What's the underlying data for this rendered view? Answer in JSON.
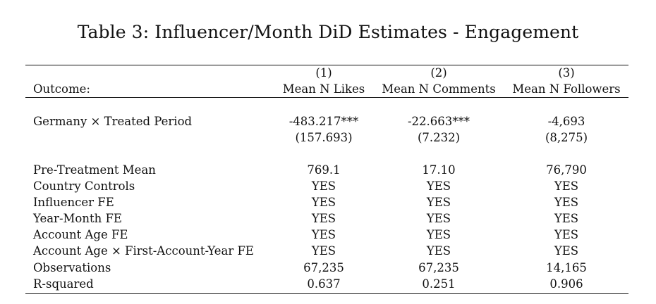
{
  "caption": "Table 3: Influencer/Month DiD Estimates - Engagement",
  "header": {
    "stub_label": "Outcome:",
    "columns": [
      {
        "number": "(1)",
        "name": "Mean N Likes"
      },
      {
        "number": "(2)",
        "name": "Mean N Comments"
      },
      {
        "number": "(3)",
        "name": "Mean N Followers"
      }
    ]
  },
  "treatment": {
    "label": "Germany × Treated Period",
    "estimates": [
      "-483.217***",
      "-22.663***",
      "-4,693"
    ],
    "std_errors": [
      "(157.693)",
      "(7.232)",
      "(8,275)"
    ]
  },
  "rows": [
    {
      "label": "Pre-Treatment Mean",
      "values": [
        "769.1",
        "17.10",
        "76,790"
      ]
    },
    {
      "label": "Country Controls",
      "values": [
        "YES",
        "YES",
        "YES"
      ]
    },
    {
      "label": "Influencer FE",
      "values": [
        "YES",
        "YES",
        "YES"
      ]
    },
    {
      "label": "Year-Month FE",
      "values": [
        "YES",
        "YES",
        "YES"
      ]
    },
    {
      "label": "Account Age FE",
      "values": [
        "YES",
        "YES",
        "YES"
      ]
    },
    {
      "label": "Account Age × First-Account-Year FE",
      "values": [
        "YES",
        "YES",
        "YES"
      ]
    },
    {
      "label": "Observations",
      "values": [
        "67,235",
        "67,235",
        "14,165"
      ]
    },
    {
      "label": "R-squared",
      "values": [
        "0.637",
        "0.251",
        "0.906"
      ]
    }
  ]
}
